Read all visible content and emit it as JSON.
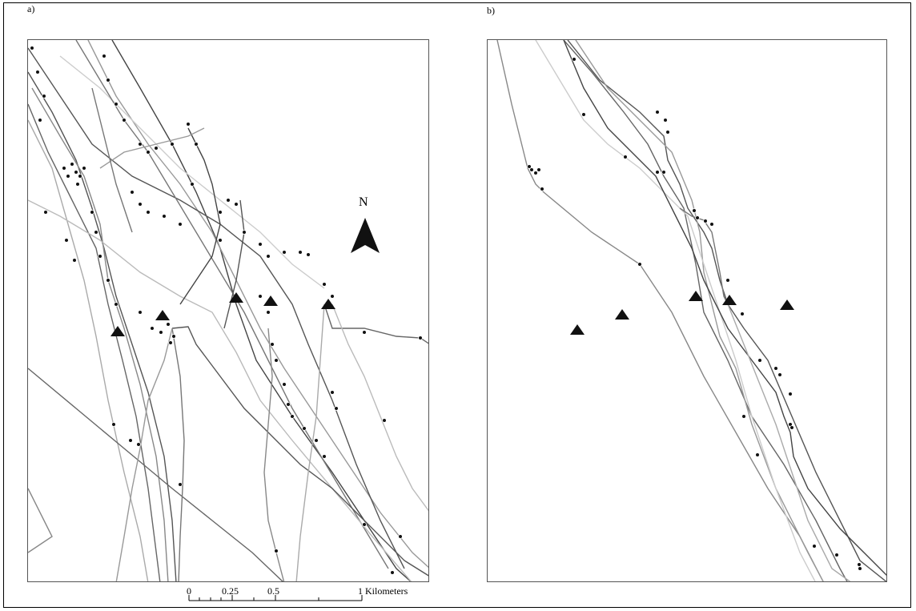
{
  "panels": [
    {
      "label": "a)"
    },
    {
      "label": "b)"
    }
  ],
  "north_arrow": {
    "label": "N",
    "icon": "north-arrow-icon"
  },
  "scale_bar": {
    "ticks": [
      "0",
      "0.25",
      "0.5",
      "1"
    ],
    "unit": "Kilometers"
  },
  "legend_symbols": {
    "station": "black-triangle-icon",
    "fix": "black-dot-icon"
  },
  "colors": {
    "track_dark": "#555555",
    "track_mid": "#888888",
    "track_light": "#c8c8c8",
    "symbol": "#111111"
  }
}
